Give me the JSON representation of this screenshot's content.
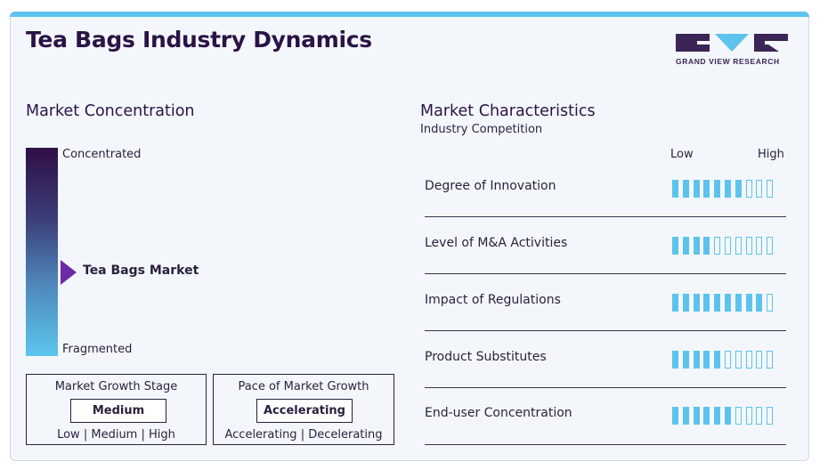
{
  "header": {
    "title": "Tea Bags Industry Dynamics",
    "brand": "GRAND VIEW RESEARCH"
  },
  "colors": {
    "accent": "#5ec3ec",
    "dark": "#2a1345",
    "marker": "#6d2aa8"
  },
  "concentration": {
    "heading": "Market Concentration",
    "top_label": "Concentrated",
    "bottom_label": "Fragmented",
    "marker_label": "Tea Bags Market"
  },
  "growth_stage": {
    "title": "Market Growth Stage",
    "value": "Medium",
    "opt1": "Low",
    "opt2": "Medium",
    "opt3": "High"
  },
  "growth_pace": {
    "title": "Pace of Market Growth",
    "value": "Accelerating",
    "opt1": "Accelerating",
    "opt2": "Decelerating"
  },
  "characteristics": {
    "heading": "Market Characteristics",
    "subheading": "Industry Competition",
    "low_label": "Low",
    "high_label": "High"
  },
  "chart_data": {
    "type": "bar",
    "scale_max": 10,
    "categories": [
      "Degree of Innovation",
      "Level of M&A Activities",
      "Impact of Regulations",
      "Product Substitutes",
      "End-user Concentration"
    ],
    "values": [
      7,
      4,
      9,
      5,
      6
    ]
  }
}
